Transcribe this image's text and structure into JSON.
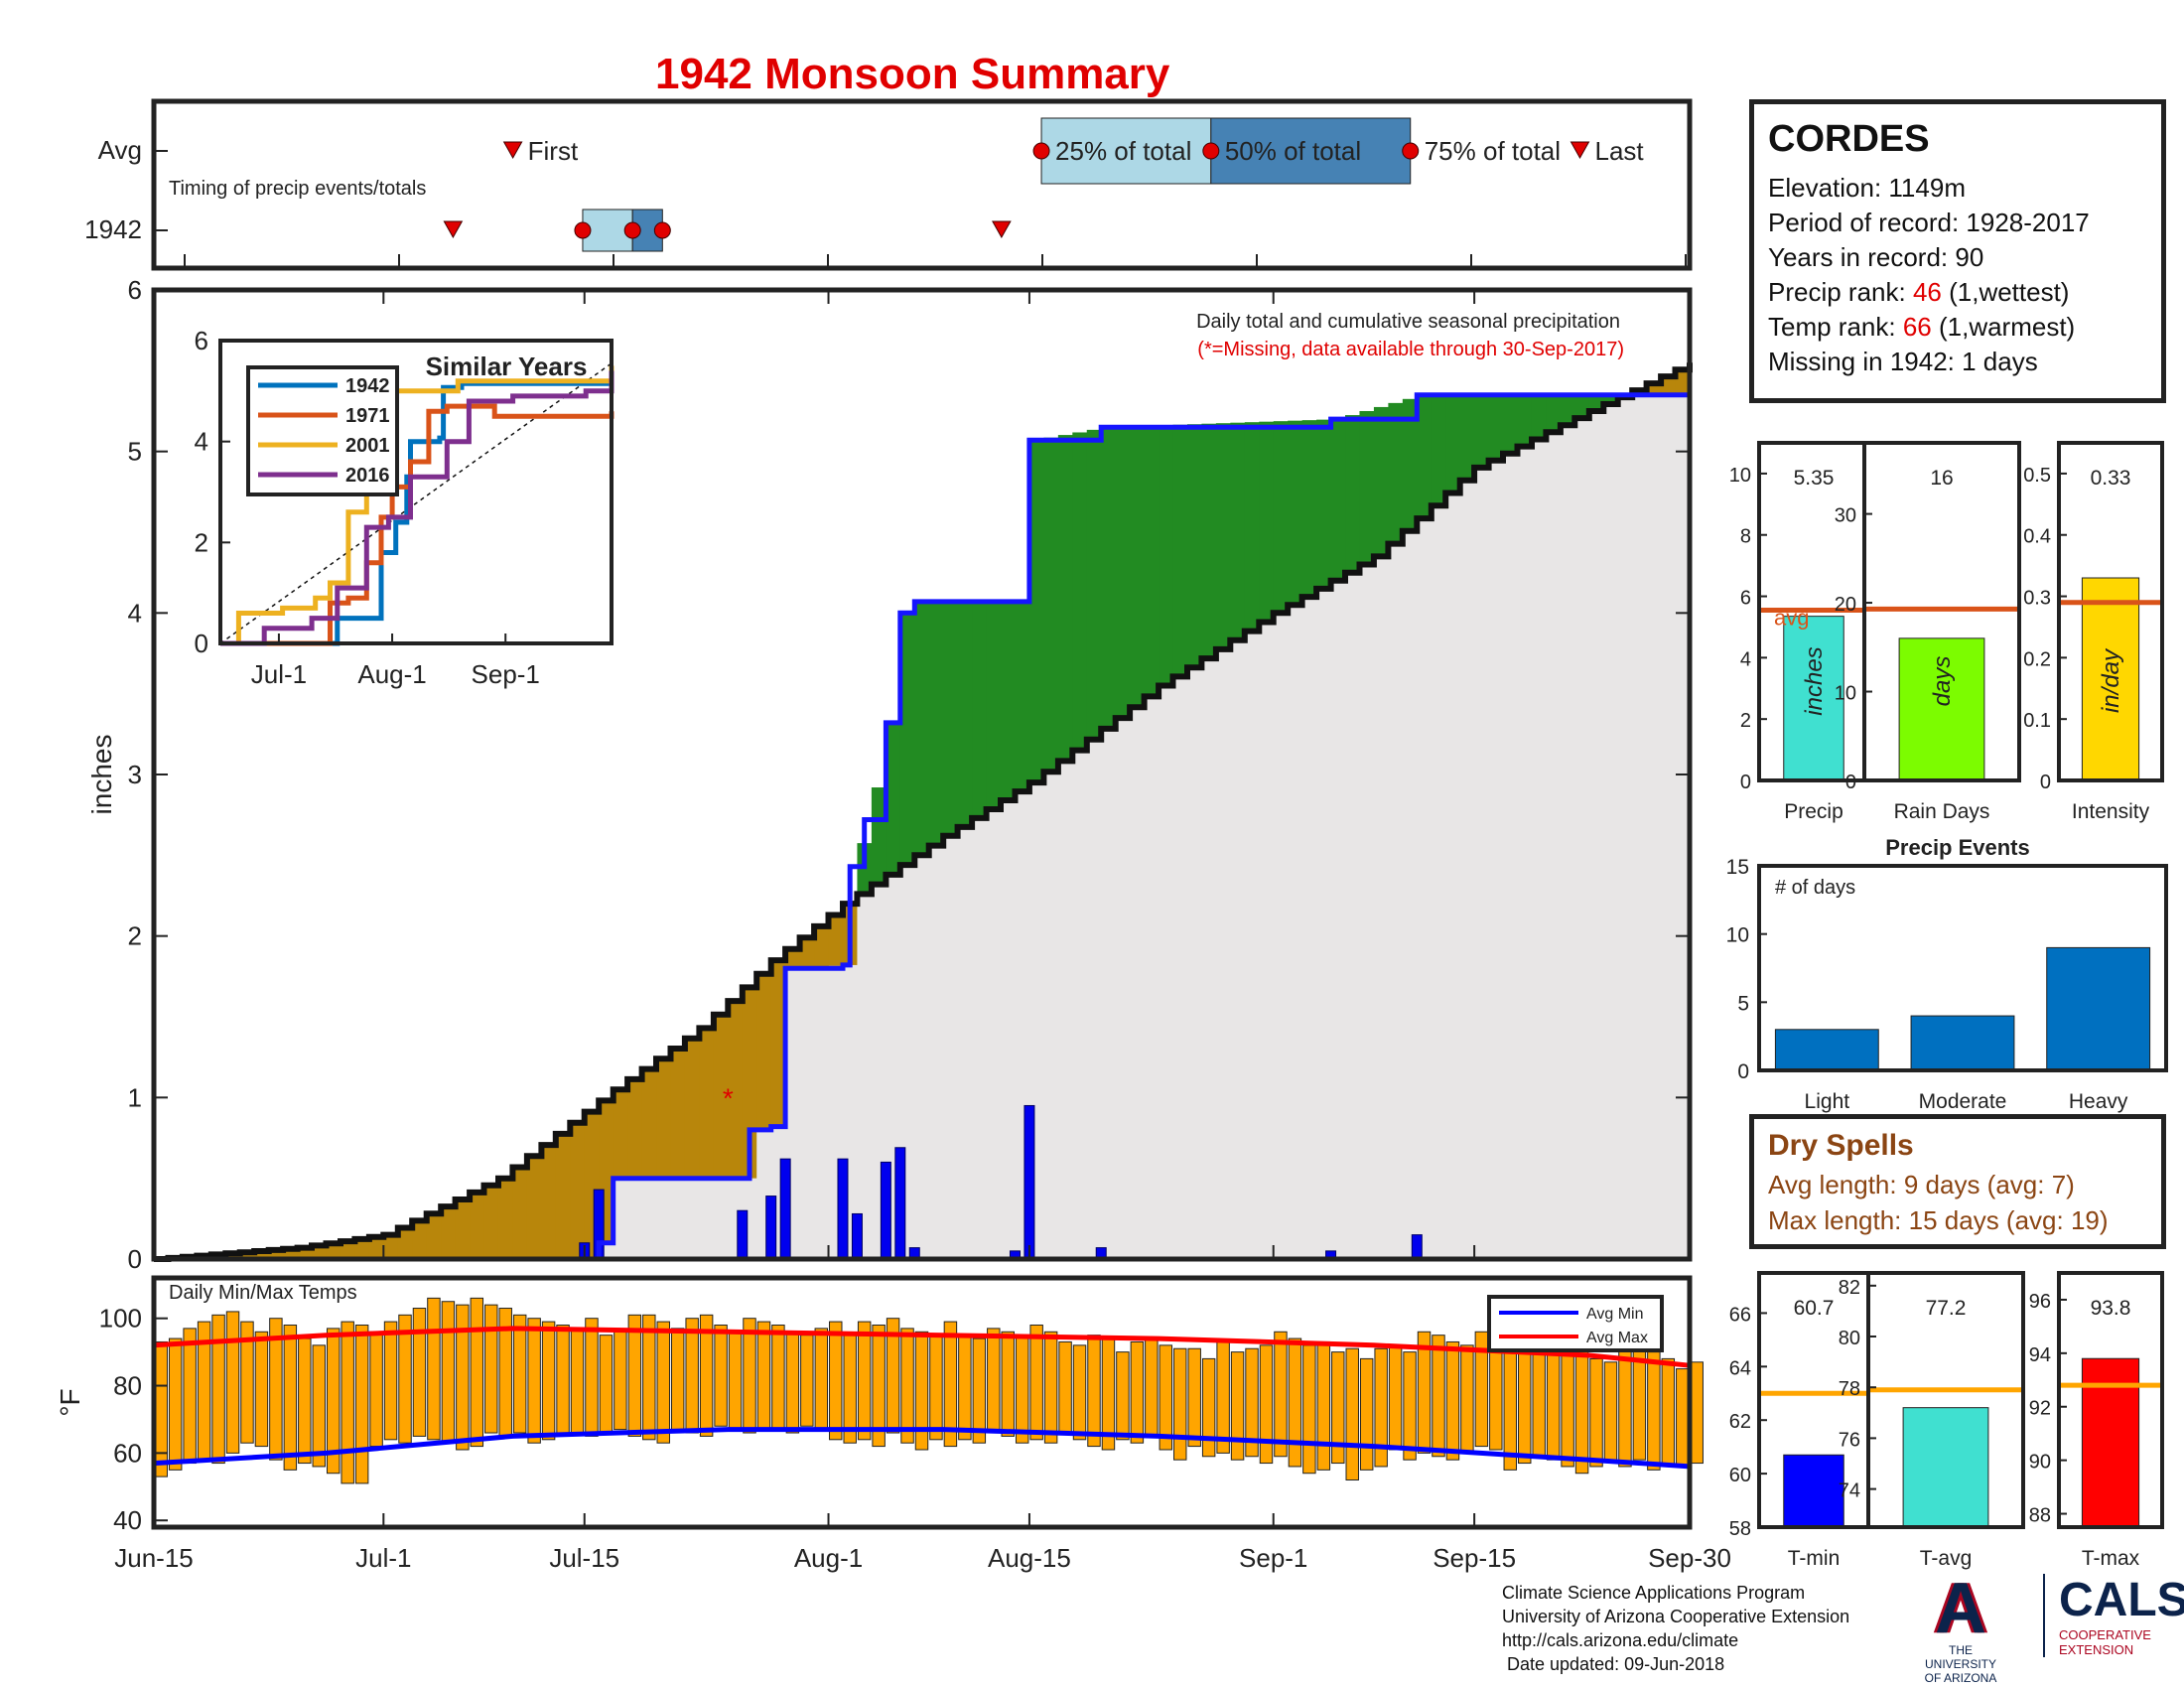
{
  "header": {
    "title": "1942 Monsoon Summary"
  },
  "station": {
    "name": "CORDES",
    "elevation": "Elevation: 1149m",
    "period": "Period of record: 1928-2017",
    "years": "Years in record: 90",
    "precip_rank_prefix": "Precip rank: ",
    "precip_rank_value": "46",
    "precip_rank_suffix": " (1,wettest)",
    "temp_rank_prefix": "Temp rank: ",
    "temp_rank_value": "66",
    "temp_rank_suffix": " (1,warmest)",
    "missing": "Missing in 1942: 1 days"
  },
  "dry_spells": {
    "title": "Dry Spells",
    "avg_length": "Avg length: 9 days (avg: 7)",
    "max_length": "Max length: 15 days (avg: 19)"
  },
  "credits": {
    "line1": "Climate Science Applications Program",
    "line2": "University of Arizona Cooperative Extension",
    "line3": "http://cals.arizona.edu/climate",
    "line4": " Date updated: 09-Jun-2018",
    "ua_logo_text": "THE UNIVERSITY OF ARIZONA",
    "cals_logo": "CALS",
    "cals_sub": "COOPERATIVE EXTENSION"
  },
  "colors": {
    "title": "#e00000",
    "above_avg": "#228B22",
    "below_avg": "#B8860B",
    "missing_area": "#e8e6e6",
    "daily_bar": "#0000ee",
    "temp_bar": "#FFA500",
    "avg_min": "#0000ff",
    "avg_max": "#ff0000",
    "timing_light": "#add8e6",
    "timing_dark": "#4682b4"
  },
  "chart_data": [
    {
      "type": "timeline",
      "name_text": "Timing of precip events/totals",
      "rows": [
        "Avg",
        "1942"
      ],
      "markers_avg": [
        {
          "label": "First",
          "day": 36
        },
        {
          "label": "25% of total",
          "day": 89
        },
        {
          "label": "50% of total",
          "day": 106
        },
        {
          "label": "75% of total",
          "day": 126
        },
        {
          "label": "Last",
          "day": 143
        }
      ],
      "markers_1942": [
        {
          "label": "First",
          "day": 30
        },
        {
          "label": "25%",
          "day": 43
        },
        {
          "label": "50%",
          "day": 48
        },
        {
          "label": "75%",
          "day": 51
        },
        {
          "label": "Last",
          "day": 85
        }
      ]
    },
    {
      "type": "area",
      "annotation_line1": "Daily total and cumulative seasonal precipitation",
      "annotation_line2": "(*=Missing, data available through 30-Sep-2017)",
      "ylabel": "inches",
      "ylim": [
        0,
        6
      ],
      "yticks": [
        0,
        1,
        2,
        3,
        4,
        5,
        6
      ],
      "xticks": [
        {
          "label": "Jun-15",
          "day": 0
        },
        {
          "label": "Jul-1",
          "day": 16
        },
        {
          "label": "Jul-15",
          "day": 30
        },
        {
          "label": "Aug-1",
          "day": 47
        },
        {
          "label": "Aug-15",
          "day": 61
        },
        {
          "label": "Sep-1",
          "day": 78
        },
        {
          "label": "Sep-15",
          "day": 92
        },
        {
          "label": "Sep-30",
          "day": 107
        }
      ],
      "xmax": 107,
      "missing_marker": {
        "day": 40,
        "value": 1.0,
        "label": "*"
      },
      "daily_precip": [
        {
          "day": 30,
          "value": 0.1
        },
        {
          "day": 31,
          "value": 0.43
        },
        {
          "day": 41,
          "value": 0.3
        },
        {
          "day": 43,
          "value": 0.39
        },
        {
          "day": 44,
          "value": 0.62
        },
        {
          "day": 48,
          "value": 0.62
        },
        {
          "day": 49,
          "value": 0.28
        },
        {
          "day": 51,
          "value": 0.6
        },
        {
          "day": 52,
          "value": 0.69
        },
        {
          "day": 53,
          "value": 0.07
        },
        {
          "day": 60,
          "value": 0.05
        },
        {
          "day": 61,
          "value": 0.95
        },
        {
          "day": 66,
          "value": 0.07
        },
        {
          "day": 82,
          "value": 0.05
        },
        {
          "day": 88,
          "value": 0.15
        }
      ],
      "cumulative_1942": [
        {
          "day": 0,
          "value": 0
        },
        {
          "day": 30,
          "value": 0
        },
        {
          "day": 31,
          "value": 0.1
        },
        {
          "day": 32,
          "value": 0.5
        },
        {
          "day": 41,
          "value": 0.5
        },
        {
          "day": 41.5,
          "value": 0.8
        },
        {
          "day": 43,
          "value": 0.82
        },
        {
          "day": 44,
          "value": 1.8
        },
        {
          "day": 48,
          "value": 1.82
        },
        {
          "day": 48.5,
          "value": 2.43
        },
        {
          "day": 49.5,
          "value": 2.72
        },
        {
          "day": 51,
          "value": 3.32
        },
        {
          "day": 52,
          "value": 4.0
        },
        {
          "day": 53,
          "value": 4.07
        },
        {
          "day": 60,
          "value": 4.07
        },
        {
          "day": 61,
          "value": 5.07
        },
        {
          "day": 66,
          "value": 5.15
        },
        {
          "day": 82,
          "value": 5.2
        },
        {
          "day": 88,
          "value": 5.35
        },
        {
          "day": 107,
          "value": 5.35
        }
      ],
      "cumulative_avg": [
        {
          "day": 0,
          "value": 0
        },
        {
          "day": 10,
          "value": 0.07
        },
        {
          "day": 16,
          "value": 0.15
        },
        {
          "day": 24,
          "value": 0.5
        },
        {
          "day": 32,
          "value": 1.05
        },
        {
          "day": 38,
          "value": 1.43
        },
        {
          "day": 43,
          "value": 1.85
        },
        {
          "day": 48,
          "value": 2.2
        },
        {
          "day": 55,
          "value": 2.62
        },
        {
          "day": 61,
          "value": 2.95
        },
        {
          "day": 70,
          "value": 3.55
        },
        {
          "day": 78,
          "value": 4.0
        },
        {
          "day": 85,
          "value": 4.35
        },
        {
          "day": 92,
          "value": 4.9
        },
        {
          "day": 100,
          "value": 5.25
        },
        {
          "day": 107,
          "value": 5.55
        }
      ]
    },
    {
      "type": "line",
      "title": "Similar Years",
      "ylim": [
        0,
        6
      ],
      "yticks": [
        0,
        2,
        4,
        6
      ],
      "xlim": [
        0,
        107
      ],
      "xticks": [
        {
          "label": "Jul-1",
          "day": 16
        },
        {
          "label": "Aug-1",
          "day": 47
        },
        {
          "label": "Sep-1",
          "day": 78
        }
      ],
      "series": [
        {
          "name": "1942",
          "color": "#0072BD",
          "points": [
            [
              0,
              0
            ],
            [
              30,
              0
            ],
            [
              32,
              0.5
            ],
            [
              41,
              0.5
            ],
            [
              44,
              1.8
            ],
            [
              48,
              2.4
            ],
            [
              51,
              3.3
            ],
            [
              52,
              4.0
            ],
            [
              60,
              4.07
            ],
            [
              61,
              5.07
            ],
            [
              66,
              5.15
            ],
            [
              107,
              5.35
            ]
          ]
        },
        {
          "name": "1971",
          "color": "#D95319",
          "points": [
            [
              0,
              0
            ],
            [
              28,
              0
            ],
            [
              30,
              0.8
            ],
            [
              35,
              0.9
            ],
            [
              40,
              1.6
            ],
            [
              44,
              2.5
            ],
            [
              47,
              3.1
            ],
            [
              52,
              3.6
            ],
            [
              57,
              4.6
            ],
            [
              62,
              4.7
            ],
            [
              75,
              4.5
            ],
            [
              80,
              4.5
            ],
            [
              107,
              4.6
            ]
          ]
        },
        {
          "name": "2001",
          "color": "#EDB120",
          "points": [
            [
              0,
              0
            ],
            [
              5,
              0.6
            ],
            [
              17,
              0.7
            ],
            [
              26,
              0.9
            ],
            [
              30,
              1.2
            ],
            [
              35,
              2.6
            ],
            [
              40,
              3.3
            ],
            [
              43,
              4.2
            ],
            [
              48,
              5.0
            ],
            [
              58,
              5.0
            ],
            [
              65,
              5.2
            ],
            [
              90,
              5.2
            ],
            [
              107,
              5.5
            ]
          ]
        },
        {
          "name": "2016",
          "color": "#7E2F8E",
          "points": [
            [
              0,
              0
            ],
            [
              10,
              0
            ],
            [
              12,
              0.3
            ],
            [
              25,
              0.5
            ],
            [
              32,
              1.1
            ],
            [
              40,
              2.3
            ],
            [
              46,
              2.5
            ],
            [
              52,
              3.3
            ],
            [
              62,
              4.0
            ],
            [
              68,
              4.8
            ],
            [
              80,
              4.9
            ],
            [
              100,
              5.0
            ],
            [
              107,
              5.4
            ]
          ]
        }
      ],
      "avg_series": [
        [
          0,
          0
        ],
        [
          107,
          5.55
        ]
      ]
    },
    {
      "type": "bar",
      "name_text": "Precip",
      "unit": "inches",
      "value": 5.35,
      "value_label": "5.35",
      "avg": 5.55,
      "avg_label": "avg",
      "ylim": [
        0,
        11
      ],
      "yticks": [
        0,
        2,
        4,
        6,
        8,
        10
      ],
      "color": "#40E0D0"
    },
    {
      "type": "bar",
      "name_text": "Rain Days",
      "unit": "days",
      "value": 16,
      "value_label": "16",
      "avg": 19.3,
      "ylim": [
        0,
        38
      ],
      "yticks": [
        0,
        10,
        20,
        30
      ],
      "color": "#7CFC00"
    },
    {
      "type": "bar",
      "name_text": "Intensity",
      "unit": "in/day",
      "value": 0.33,
      "value_label": "0.33",
      "avg": 0.29,
      "ylim": [
        0,
        0.55
      ],
      "yticks": [
        0,
        0.1,
        0.2,
        0.3,
        0.4,
        0.5
      ],
      "color": "#FFD700"
    },
    {
      "type": "bar",
      "title": "Precip Events",
      "ylabel": "# of days",
      "categories": [
        "Light",
        "Moderate",
        "Heavy"
      ],
      "values": [
        3,
        4,
        9
      ],
      "ylim": [
        0,
        15
      ],
      "yticks": [
        0,
        5,
        10,
        15
      ],
      "color": "#0070C0"
    },
    {
      "type": "bar",
      "title": "Daily Min/Max Temps",
      "ylabel": "°F",
      "ylim": [
        38,
        112
      ],
      "yticks": [
        40,
        60,
        80,
        100
      ],
      "legend": [
        "Avg Min",
        "Avg Max"
      ],
      "bar_color": "#FFA500",
      "xmax": 107,
      "daily_max": [
        93,
        94,
        97,
        99,
        101,
        102,
        99,
        96,
        100,
        98,
        94,
        92,
        97,
        99,
        98,
        96,
        99,
        101,
        103,
        106,
        105,
        104,
        106,
        104,
        103,
        101,
        100,
        99,
        98,
        97,
        100,
        95,
        96,
        101,
        101,
        99,
        97,
        100,
        101,
        98,
        96,
        100,
        99,
        98,
        96,
        95,
        97,
        99,
        95,
        99,
        98,
        100,
        97,
        96,
        95,
        99,
        95,
        94,
        97,
        96,
        95,
        98,
        96,
        93,
        92,
        95,
        94,
        90,
        93,
        94,
        92,
        91,
        91,
        88,
        93,
        90,
        91,
        92,
        96,
        94,
        92,
        93,
        90,
        91,
        88,
        91,
        92,
        90,
        96,
        95,
        93,
        92,
        96,
        98,
        95,
        94,
        92,
        95,
        89,
        91,
        88,
        87,
        95,
        93,
        90,
        88,
        85,
        87
      ],
      "daily_min": [
        53,
        55,
        57,
        58,
        57,
        60,
        63,
        62,
        58,
        55,
        57,
        56,
        54,
        51,
        51,
        62,
        64,
        63,
        65,
        64,
        63,
        61,
        62,
        66,
        65,
        66,
        63,
        64,
        65,
        66,
        65,
        66,
        67,
        65,
        64,
        63,
        66,
        66,
        65,
        68,
        67,
        66,
        67,
        67,
        66,
        68,
        67,
        64,
        63,
        64,
        62,
        66,
        63,
        61,
        64,
        62,
        64,
        63,
        66,
        65,
        63,
        64,
        63,
        66,
        64,
        62,
        61,
        64,
        63,
        65,
        61,
        58,
        62,
        59,
        60,
        58,
        59,
        57,
        59,
        56,
        54,
        55,
        57,
        52,
        55,
        56,
        61,
        58,
        60,
        59,
        58,
        60,
        62,
        61,
        55,
        57,
        59,
        58,
        56,
        54,
        56,
        58,
        56,
        58,
        55,
        56,
        56,
        57
      ],
      "avg_max": [
        [
          0,
          92
        ],
        [
          12,
          95
        ],
        [
          25,
          97
        ],
        [
          40,
          96
        ],
        [
          55,
          95
        ],
        [
          70,
          94
        ],
        [
          85,
          92
        ],
        [
          100,
          89
        ],
        [
          107,
          86
        ]
      ],
      "avg_min": [
        [
          0,
          57
        ],
        [
          12,
          60
        ],
        [
          25,
          65
        ],
        [
          40,
          67
        ],
        [
          55,
          67
        ],
        [
          70,
          65
        ],
        [
          85,
          62
        ],
        [
          100,
          58
        ],
        [
          107,
          56
        ]
      ]
    },
    {
      "type": "bar",
      "name_text": "T-min",
      "value": 60.7,
      "value_label": "60.7",
      "avg": 63.0,
      "ylim": [
        58,
        67.5
      ],
      "yticks": [
        58,
        60,
        62,
        64,
        66
      ],
      "color": "#0000ff"
    },
    {
      "type": "bar",
      "name_text": "T-avg",
      "value": 77.2,
      "value_label": "77.2",
      "avg": 77.9,
      "ylim": [
        72.5,
        82.5
      ],
      "yticks": [
        74,
        76,
        78,
        80,
        82
      ],
      "color": "#40E0D0"
    },
    {
      "type": "bar",
      "name_text": "T-max",
      "value": 93.8,
      "value_label": "93.8",
      "avg": 92.8,
      "ylim": [
        87.5,
        97
      ],
      "yticks": [
        88,
        90,
        92,
        94,
        96
      ],
      "color": "#ff0000"
    }
  ]
}
